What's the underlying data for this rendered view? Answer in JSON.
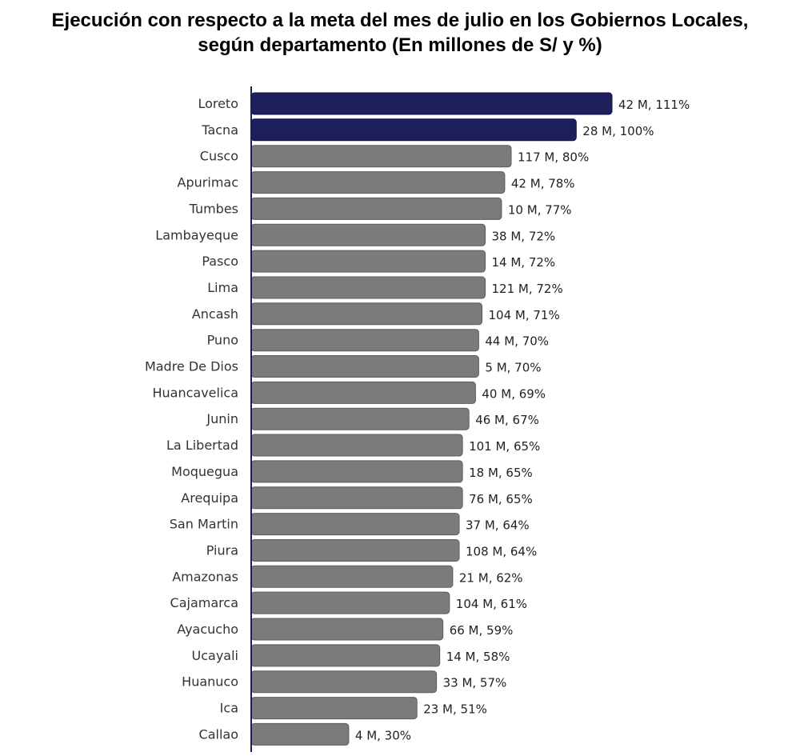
{
  "chart_data": {
    "type": "bar",
    "orientation": "horizontal",
    "title": "Ejecución con respecto a la meta del mes de julio en los Gobiernos Locales,",
    "subtitle": "según departamento (En millones de S/ y %)",
    "xlabel": "",
    "ylabel": "",
    "grid": false,
    "legend": "none",
    "xlim": [
      0,
      111
    ],
    "categories": [
      "Loreto",
      "Tacna",
      "Cusco",
      "Apurimac",
      "Tumbes",
      "Lambayeque",
      "Pasco",
      "Lima",
      "Ancash",
      "Puno",
      "Madre De Dios",
      "Huancavelica",
      "Junin",
      "La Libertad",
      "Moquegua",
      "Arequipa",
      "San Martin",
      "Piura",
      "Amazonas",
      "Cajamarca",
      "Ayacucho",
      "Ucayali",
      "Huanuco",
      "Ica",
      "Callao"
    ],
    "values": [
      111,
      100,
      80,
      78,
      77,
      72,
      72,
      72,
      71,
      70,
      70,
      69,
      67,
      65,
      65,
      65,
      64,
      64,
      62,
      61,
      59,
      58,
      57,
      51,
      30
    ],
    "amounts_millions": [
      42,
      28,
      117,
      42,
      10,
      38,
      14,
      121,
      104,
      44,
      5,
      40,
      46,
      101,
      18,
      76,
      37,
      108,
      21,
      104,
      66,
      14,
      33,
      23,
      4
    ],
    "labels": [
      "42 M, 111%",
      "28 M, 100%",
      "117 M, 80%",
      "42 M, 78%",
      "10 M, 77%",
      "38 M, 72%",
      "14 M, 72%",
      "121 M, 72%",
      "104 M, 71%",
      "44 M, 70%",
      "5 M, 70%",
      "40 M, 69%",
      "46 M, 67%",
      "101 M, 65%",
      "18 M, 65%",
      "76 M, 65%",
      "37 M, 64%",
      "108 M, 64%",
      "21 M, 62%",
      "104 M, 61%",
      "66 M, 59%",
      "14 M, 58%",
      "33 M, 57%",
      "23 M, 51%",
      "4 M, 30%"
    ],
    "highlight_count": 2,
    "colors": {
      "highlight": "#1c1f5c",
      "highlight_border": "#0f1140",
      "default": "#7b7b7b",
      "default_border": "#5c5c5c",
      "axis": "#1c1f5c"
    }
  }
}
